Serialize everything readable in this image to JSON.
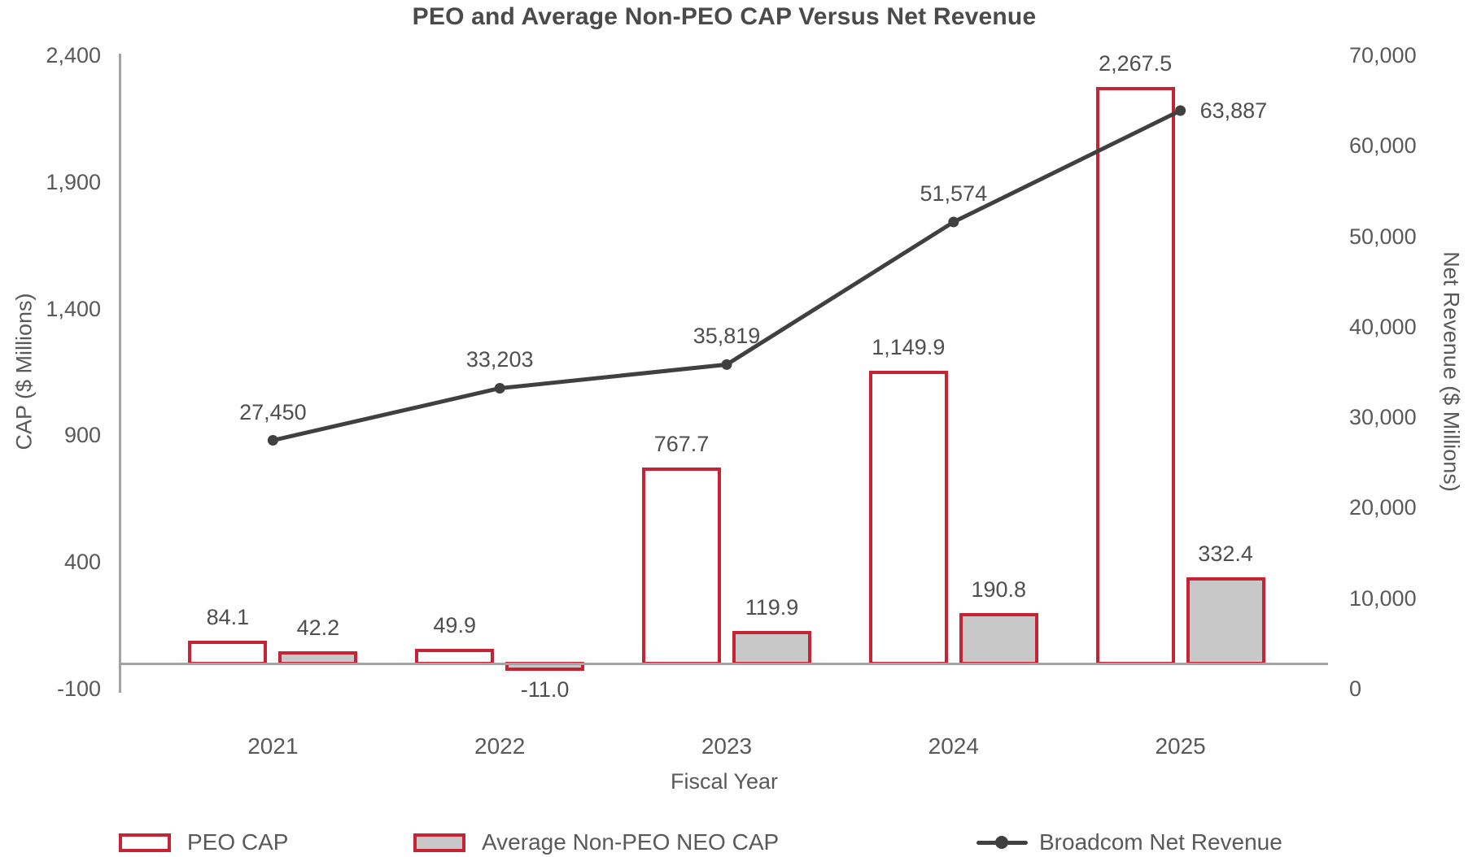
{
  "chart_data": {
    "type": "combo-bar-line",
    "title": "PEO and Average Non-PEO CAP Versus Net Revenue",
    "xlabel": "Fiscal Year",
    "ylabel_left": "CAP ($ Millions)",
    "ylabel_right": "Net Revenue ($ Millions)",
    "categories": [
      "2021",
      "2022",
      "2023",
      "2024",
      "2025"
    ],
    "series": [
      {
        "name": "PEO CAP",
        "type": "bar",
        "axis": "left",
        "values": [
          84.1,
          49.9,
          767.7,
          1149.9,
          2267.5
        ],
        "labels": [
          "84.1",
          "49.9",
          "767.7",
          "1,149.9",
          "2,267.5"
        ],
        "fill": "#ffffff",
        "border": "#c62434"
      },
      {
        "name": "Average Non-PEO NEO CAP",
        "type": "bar",
        "axis": "left",
        "values": [
          42.2,
          -11.0,
          119.9,
          190.8,
          332.4
        ],
        "labels": [
          "42.2",
          "-11.0",
          "119.9",
          "190.8",
          "332.4"
        ],
        "fill": "#c8c8c8",
        "border": "#c62434"
      },
      {
        "name": "Broadcom Net Revenue",
        "type": "line",
        "axis": "right",
        "values": [
          27450,
          33203,
          35819,
          51574,
          63887
        ],
        "labels": [
          "27,450",
          "33,203",
          "35,819",
          "51,574",
          "63,887"
        ],
        "color": "#404040"
      }
    ],
    "axes": {
      "left": {
        "min": -100,
        "max": 2400,
        "tick_values": [
          -100,
          400,
          900,
          1400,
          1900,
          2400
        ],
        "ticks": [
          "-100",
          "400",
          "900",
          "1,400",
          "1,900",
          "2,400"
        ]
      },
      "right": {
        "min": 0,
        "max": 70000,
        "tick_values": [
          0,
          10000,
          20000,
          30000,
          40000,
          50000,
          60000,
          70000
        ],
        "ticks": [
          "0",
          "10,000",
          "20,000",
          "30,000",
          "40,000",
          "50,000",
          "60,000",
          "70,000"
        ]
      }
    },
    "grid": false,
    "legend_position": "bottom",
    "colors": {
      "bar_outline": "#c62434",
      "bar_fill_gray": "#c8c8c8",
      "line": "#404040",
      "axis_line": "#a3a3a3",
      "text": "#595959",
      "title": "#4a4a4a"
    }
  }
}
